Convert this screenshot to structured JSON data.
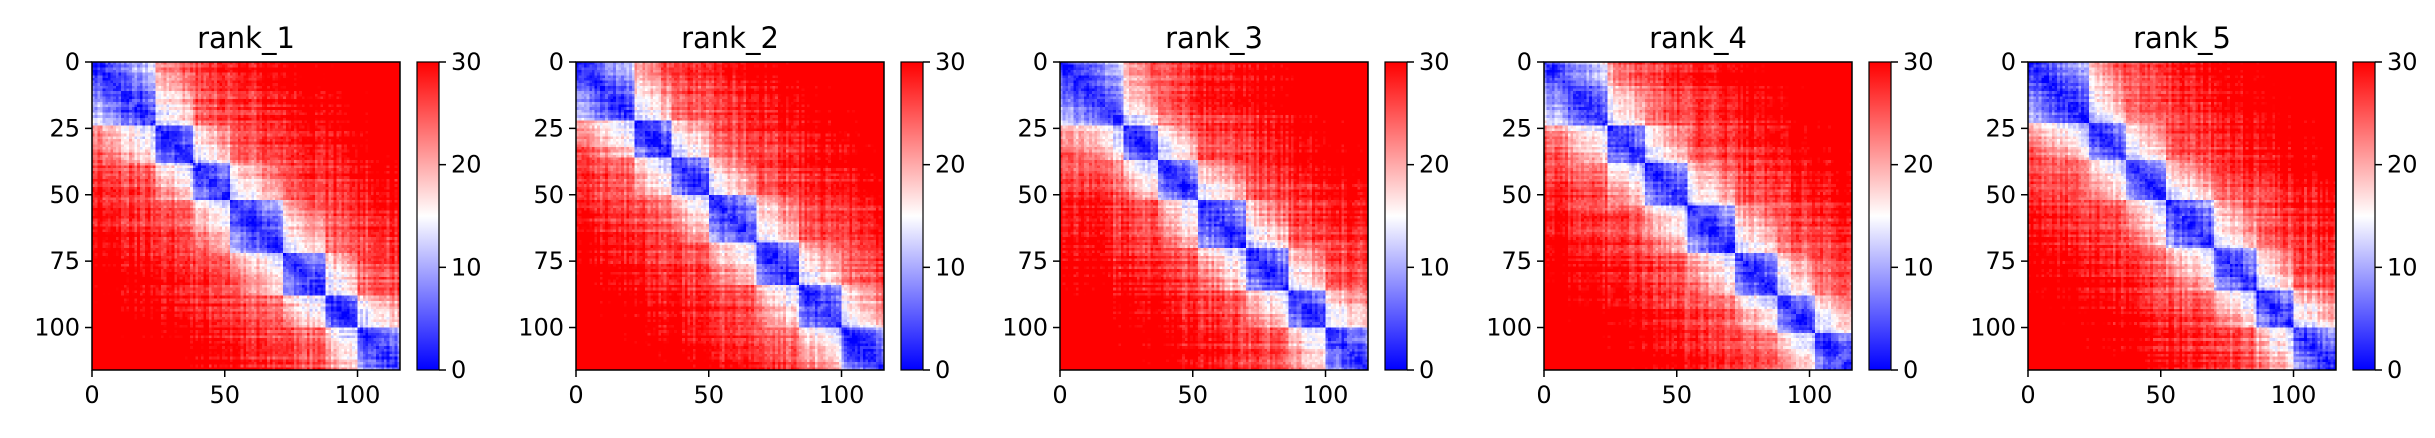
{
  "chart_data": [
    {
      "type": "heatmap",
      "title": "rank_1",
      "x_ticks": [
        0,
        50,
        100
      ],
      "y_ticks": [
        0,
        25,
        50,
        75,
        100
      ],
      "xlim": [
        0,
        116
      ],
      "ylim": [
        116,
        0
      ],
      "colorbar": {
        "ticks": [
          0,
          10,
          20,
          30
        ],
        "range": [
          0,
          30
        ],
        "colormap": "bwr",
        "low_color": "#0000ff",
        "mid_color": "#ffffff",
        "high_color": "#ff0000"
      },
      "n": 116,
      "domains": [
        0,
        24,
        38,
        52,
        72,
        88,
        100,
        116
      ],
      "noise_seed": 11
    },
    {
      "type": "heatmap",
      "title": "rank_2",
      "x_ticks": [
        0,
        50,
        100
      ],
      "y_ticks": [
        0,
        25,
        50,
        75,
        100
      ],
      "xlim": [
        0,
        116
      ],
      "ylim": [
        116,
        0
      ],
      "colorbar": {
        "ticks": [
          0,
          10,
          20,
          30
        ],
        "range": [
          0,
          30
        ],
        "colormap": "bwr",
        "low_color": "#0000ff",
        "mid_color": "#ffffff",
        "high_color": "#ff0000"
      },
      "n": 116,
      "domains": [
        0,
        22,
        36,
        50,
        68,
        84,
        100,
        116
      ],
      "noise_seed": 23
    },
    {
      "type": "heatmap",
      "title": "rank_3",
      "x_ticks": [
        0,
        50,
        100
      ],
      "y_ticks": [
        0,
        25,
        50,
        75,
        100
      ],
      "xlim": [
        0,
        116
      ],
      "ylim": [
        116,
        0
      ],
      "colorbar": {
        "ticks": [
          0,
          10,
          20,
          30
        ],
        "range": [
          0,
          30
        ],
        "colormap": "bwr",
        "low_color": "#0000ff",
        "mid_color": "#ffffff",
        "high_color": "#ff0000"
      },
      "n": 116,
      "domains": [
        0,
        24,
        37,
        52,
        70,
        86,
        100,
        116
      ],
      "noise_seed": 37
    },
    {
      "type": "heatmap",
      "title": "rank_4",
      "x_ticks": [
        0,
        50,
        100
      ],
      "y_ticks": [
        0,
        25,
        50,
        75,
        100
      ],
      "xlim": [
        0,
        116
      ],
      "ylim": [
        116,
        0
      ],
      "colorbar": {
        "ticks": [
          0,
          10,
          20,
          30
        ],
        "range": [
          0,
          30
        ],
        "colormap": "bwr",
        "low_color": "#0000ff",
        "mid_color": "#ffffff",
        "high_color": "#ff0000"
      },
      "n": 116,
      "domains": [
        0,
        24,
        38,
        54,
        72,
        88,
        102,
        116
      ],
      "noise_seed": 41
    },
    {
      "type": "heatmap",
      "title": "rank_5",
      "x_ticks": [
        0,
        50,
        100
      ],
      "y_ticks": [
        0,
        25,
        50,
        75,
        100
      ],
      "xlim": [
        0,
        116
      ],
      "ylim": [
        116,
        0
      ],
      "colorbar": {
        "ticks": [
          0,
          10,
          20,
          30
        ],
        "range": [
          0,
          30
        ],
        "colormap": "bwr",
        "low_color": "#0000ff",
        "mid_color": "#ffffff",
        "high_color": "#ff0000"
      },
      "n": 116,
      "domains": [
        0,
        23,
        37,
        52,
        70,
        86,
        100,
        116
      ],
      "noise_seed": 53
    }
  ]
}
